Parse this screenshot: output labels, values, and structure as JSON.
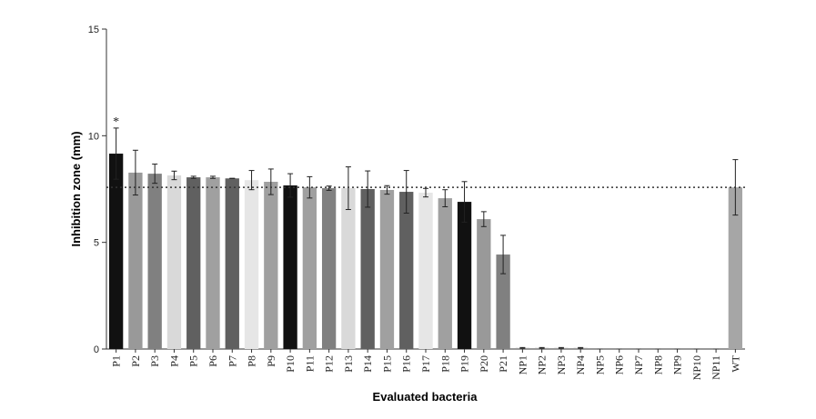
{
  "chart_data": {
    "type": "bar",
    "x_label": "Evaluated bacteria",
    "y_label": "Inhibition zone (mm)",
    "categories": [
      "P1",
      "P2",
      "P3",
      "P4",
      "P5",
      "P6",
      "P7",
      "P8",
      "P9",
      "P10",
      "P11",
      "P12",
      "P13",
      "P14",
      "P15",
      "P16",
      "P17",
      "P18",
      "P19",
      "P20",
      "P21",
      "NP1",
      "NP2",
      "NP3",
      "NP4",
      "NP5",
      "NP6",
      "NP7",
      "NP8",
      "NP9",
      "NP10",
      "NP11",
      "WT"
    ],
    "values": [
      9.16,
      8.27,
      8.22,
      8.14,
      8.05,
      8.05,
      8.0,
      7.92,
      7.84,
      7.67,
      7.58,
      7.54,
      7.54,
      7.5,
      7.46,
      7.37,
      7.33,
      7.07,
      6.9,
      6.09,
      4.43,
      0.05,
      0.05,
      0.05,
      0.05,
      0,
      0,
      0,
      0,
      0,
      0,
      0,
      7.58
    ],
    "errors": [
      1.2,
      1.05,
      0.45,
      0.2,
      0.05,
      0.05,
      0,
      0.45,
      0.6,
      0.55,
      0.5,
      0.1,
      1.0,
      0.85,
      0.2,
      1.0,
      0.2,
      0.4,
      0.95,
      0.35,
      0.9,
      0.02,
      0.02,
      0.02,
      0.02,
      0,
      0,
      0,
      0,
      0,
      0,
      0,
      1.3
    ],
    "colors": [
      "#111111",
      "#999999",
      "#808080",
      "#d9d9d9",
      "#606060",
      "#a0a0a0",
      "#606060",
      "#e6e6e6",
      "#a0a0a0",
      "#111111",
      "#a0a0a0",
      "#808080",
      "#d9d9d9",
      "#606060",
      "#a0a0a0",
      "#606060",
      "#e6e6e6",
      "#a0a0a0",
      "#111111",
      "#999999",
      "#808080",
      "#999999",
      "#999999",
      "#999999",
      "#999999",
      "#999999",
      "#999999",
      "#999999",
      "#999999",
      "#999999",
      "#999999",
      "#999999",
      "#a6a6a6"
    ],
    "reference_line": 7.58,
    "annotations": [
      {
        "at": "P1",
        "text": "*"
      }
    ],
    "ylim": [
      0,
      15
    ],
    "yticks": [
      0,
      5,
      10,
      15
    ],
    "grid": false
  }
}
